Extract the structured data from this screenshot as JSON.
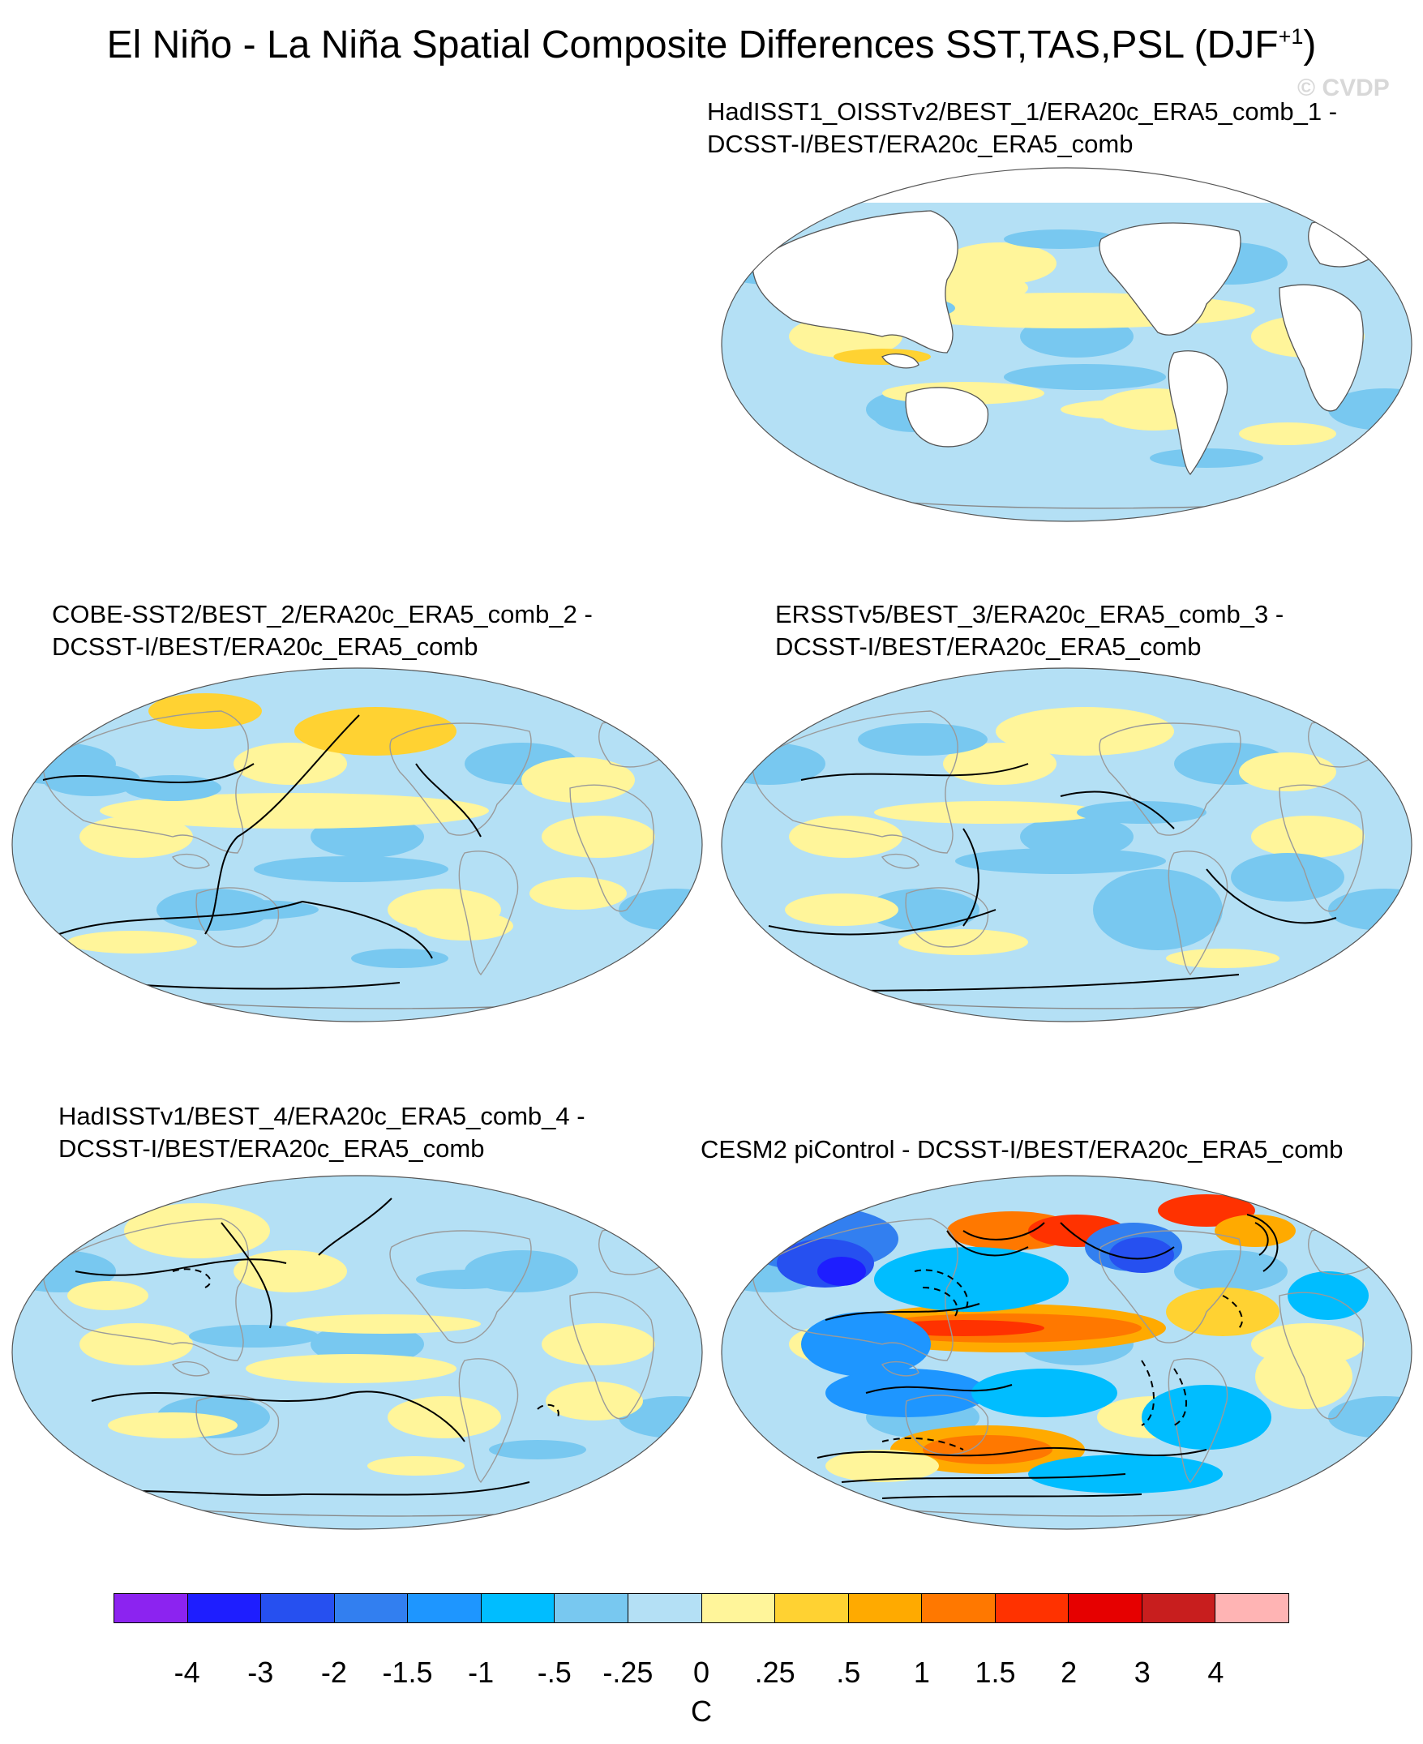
{
  "figure": {
    "title": "El Niño - La Niña Spatial Composite Differences SST,TAS,PSL (DJF",
    "title_superscript": "+1",
    "title_close": ")",
    "watermark": "© CVDP"
  },
  "panels": [
    {
      "id": "p1",
      "title_line1": "HadISST1_OISSTv2/BEST_1/ERA20c_ERA5_comb_1 -",
      "title_line2": "DCSST-I/BEST/ERA20c_ERA5_comb",
      "land_masked": true,
      "has_psl_contours": false,
      "strong_anomaly": false
    },
    {
      "id": "p2",
      "title_line1": "COBE-SST2/BEST_2/ERA20c_ERA5_comb_2 -",
      "title_line2": "DCSST-I/BEST/ERA20c_ERA5_comb",
      "land_masked": false,
      "has_psl_contours": true,
      "strong_anomaly": false
    },
    {
      "id": "p3",
      "title_line1": "ERSSTv5/BEST_3/ERA20c_ERA5_comb_3 -",
      "title_line2": "DCSST-I/BEST/ERA20c_ERA5_comb",
      "land_masked": false,
      "has_psl_contours": true,
      "strong_anomaly": false
    },
    {
      "id": "p4",
      "title_line1": "HadISSTv1/BEST_4/ERA20c_ERA5_comb_4 -",
      "title_line2": "DCSST-I/BEST/ERA20c_ERA5_comb",
      "land_masked": false,
      "has_psl_contours": true,
      "strong_anomaly": false
    },
    {
      "id": "p5",
      "title_line1": "CESM2 piControl - DCSST-I/BEST/ERA20c_ERA5_comb",
      "title_line2": "",
      "land_masked": false,
      "has_psl_contours": true,
      "strong_anomaly": true
    }
  ],
  "colorbar": {
    "unit": "C",
    "labels": [
      "-4",
      "-3",
      "-2",
      "-1.5",
      "-1",
      "-.5",
      "-.25",
      "0",
      ".25",
      ".5",
      "1",
      "1.5",
      "2",
      "3",
      "4"
    ],
    "colors": [
      "#8c23f0",
      "#1e1eff",
      "#2650f0",
      "#327ff0",
      "#1e96ff",
      "#00bdff",
      "#78c8f0",
      "#b4e0f5",
      "#fff59a",
      "#ffd232",
      "#ffaa00",
      "#ff7800",
      "#ff3200",
      "#e60000",
      "#c81e1e",
      "#ffb4b4"
    ]
  }
}
